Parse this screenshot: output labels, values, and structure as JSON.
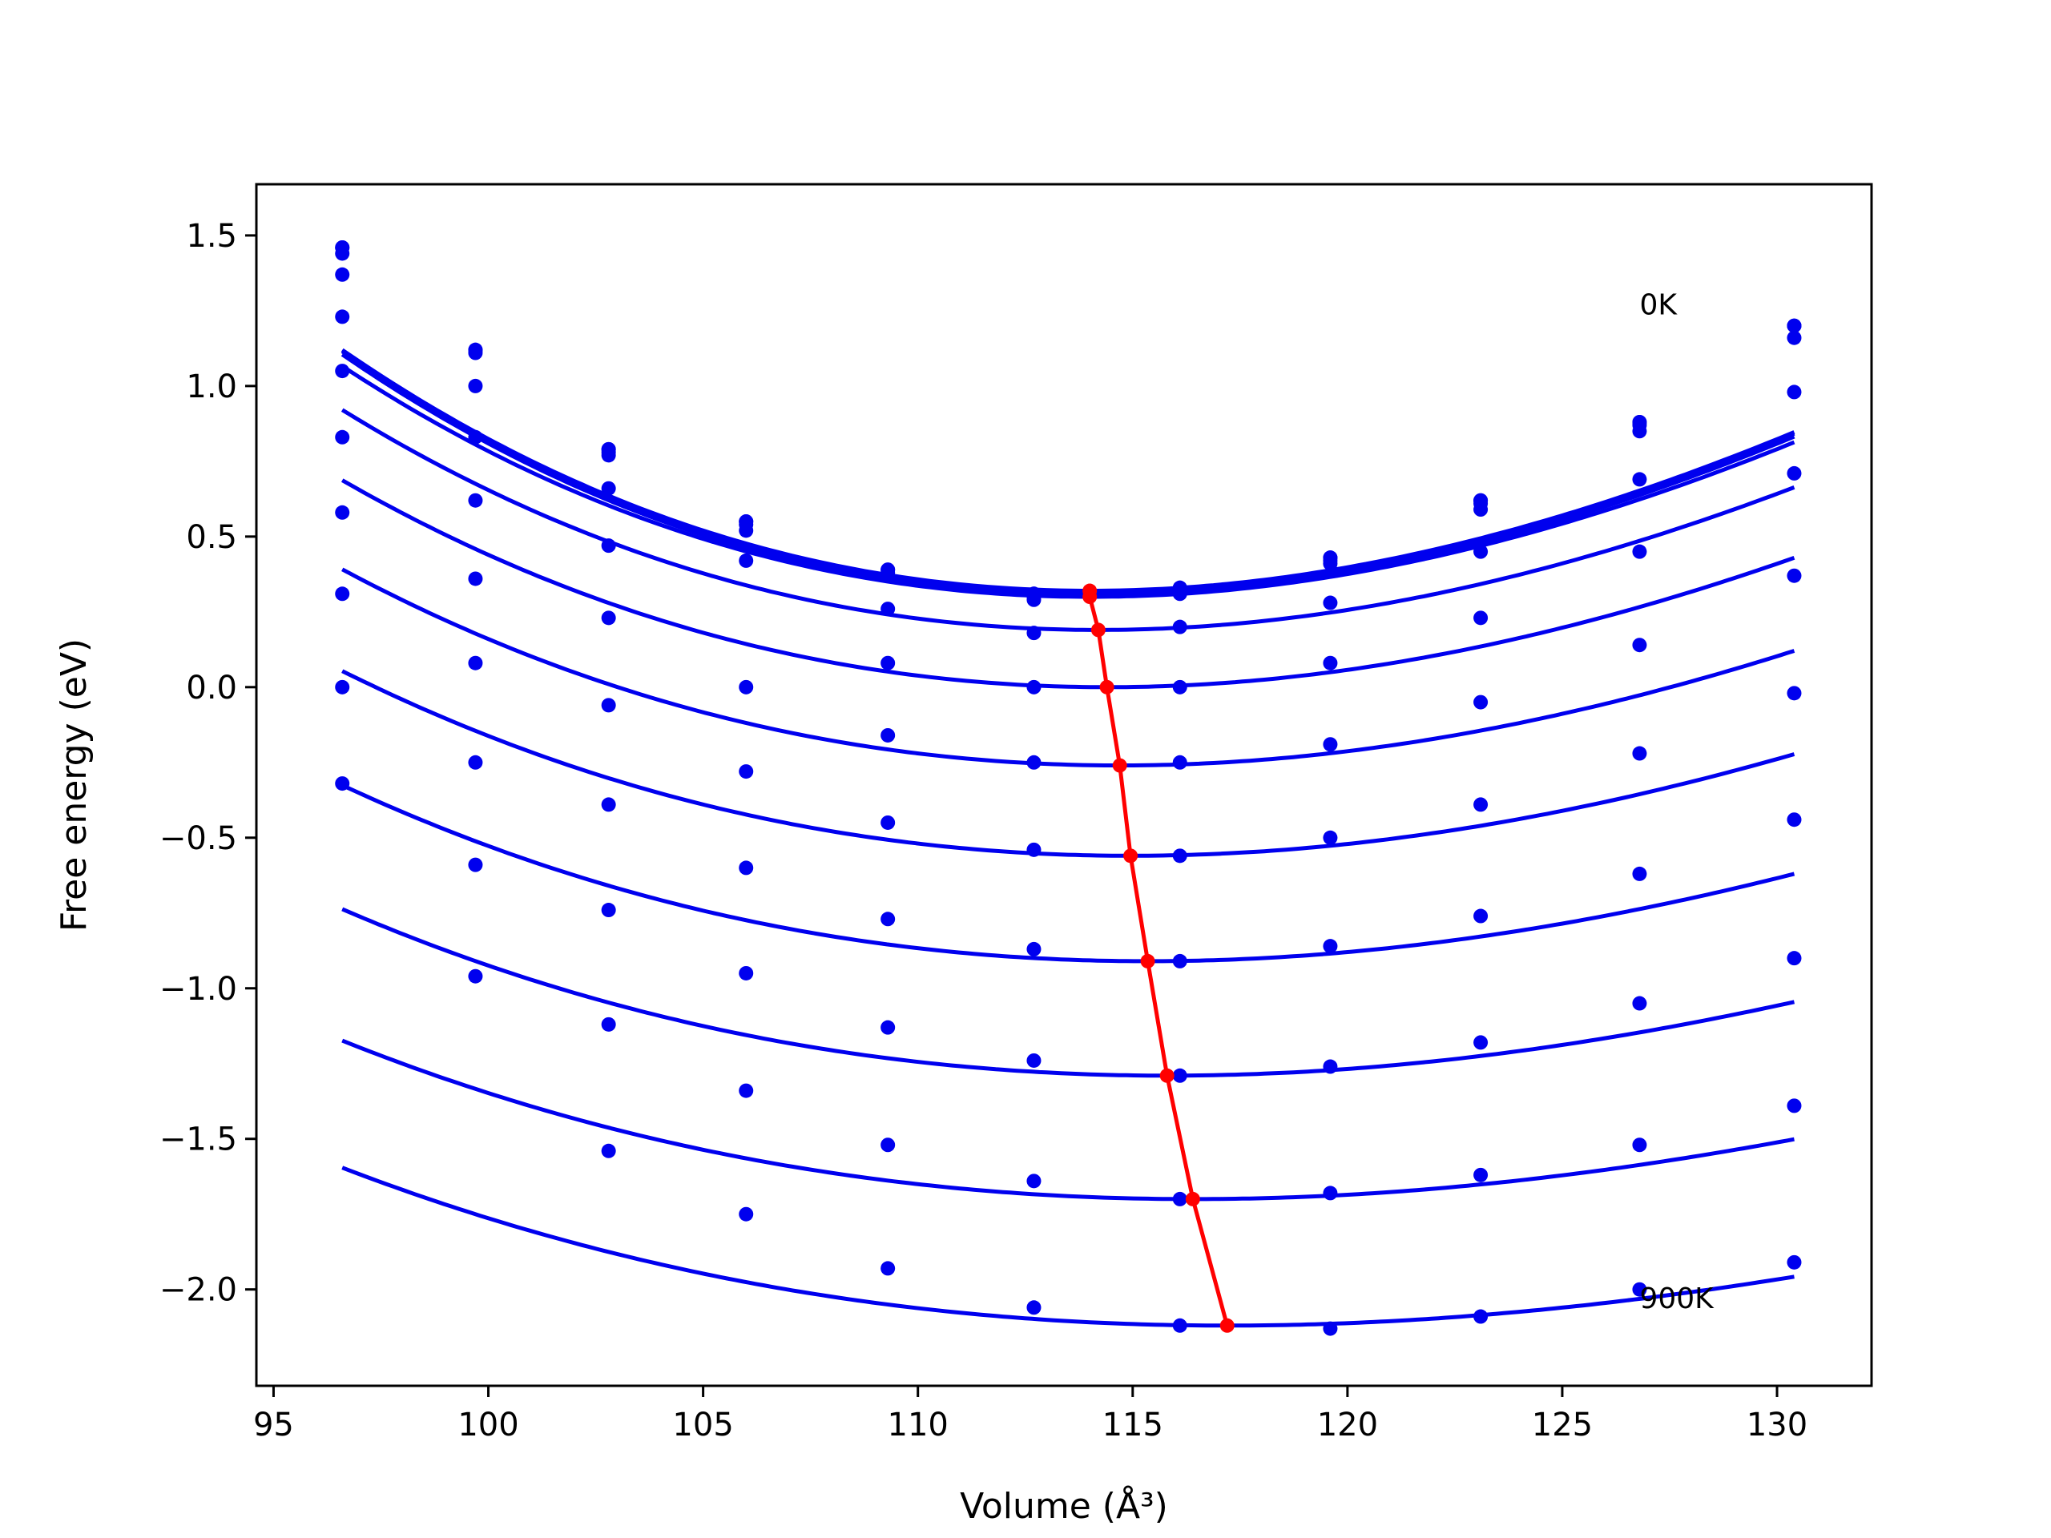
{
  "chart_data": {
    "type": "line",
    "xlabel": "Volume (Å³)",
    "ylabel": "Free energy (eV)",
    "xlim": [
      94.6,
      132.2
    ],
    "ylim": [
      -2.32,
      1.67
    ],
    "x_ticks": [
      95,
      100,
      105,
      110,
      115,
      120,
      125,
      130
    ],
    "y_ticks": [
      -2.0,
      -1.5,
      -1.0,
      -0.5,
      0.0,
      0.5,
      1.0,
      1.5
    ],
    "x_tick_labels": [
      "95",
      "100",
      "105",
      "110",
      "115",
      "120",
      "125",
      "130"
    ],
    "y_tick_labels": [
      "−2.0",
      "−1.5",
      "−1.0",
      "−0.5",
      "0.0",
      "0.5",
      "1.0",
      "1.5"
    ],
    "grid": false,
    "colors": {
      "curves": "#0000ee",
      "minimum_line": "#ff0000"
    },
    "annotations": [
      {
        "text": "0K",
        "x": 126.8,
        "y": 1.27
      },
      {
        "text": "900K",
        "x": 126.8,
        "y": -2.03
      }
    ],
    "volumes": [
      96.6,
      99.7,
      102.8,
      106.0,
      109.3,
      112.7,
      116.1,
      119.6,
      123.1,
      126.8,
      130.4
    ],
    "series": [
      {
        "points": [
          1.46,
          1.12,
          0.79,
          0.55,
          0.39,
          0.31,
          0.33,
          0.43,
          0.62,
          0.88,
          1.2
        ],
        "fit": {
          "v0": 114.0,
          "e0": 0.32,
          "c2": 0.00229,
          "c3": -2.02e-05
        }
      },
      {
        "points": [
          1.46,
          1.12,
          0.79,
          0.55,
          0.39,
          0.31,
          0.33,
          0.43,
          0.62,
          0.88,
          1.2
        ],
        "fit": {
          "v0": 114.0,
          "e0": 0.315,
          "c2": 0.00229,
          "c3": -2.02e-05
        }
      },
      {
        "points": [
          1.44,
          1.11,
          0.78,
          0.54,
          0.38,
          0.3,
          0.32,
          0.42,
          0.61,
          0.87,
          1.2
        ],
        "fit": {
          "v0": 114.0,
          "e0": 0.305,
          "c2": 0.00229,
          "c3": -2.02e-05
        }
      },
      {
        "points": [
          1.37,
          1.0,
          0.77,
          0.52,
          0.37,
          0.29,
          0.31,
          0.41,
          0.59,
          0.85,
          1.16
        ],
        "fit": {
          "v0": 114.0,
          "e0": 0.3,
          "c2": 0.00221,
          "c3": -1.84e-05
        }
      },
      {
        "points": [
          1.23,
          0.83,
          0.66,
          0.42,
          0.26,
          0.18,
          0.2,
          0.28,
          0.45,
          0.69,
          0.98
        ],
        "fit": {
          "v0": 114.2,
          "e0": 0.19,
          "c2": 0.00207,
          "c3": -1.64e-05
        }
      },
      {
        "points": [
          1.05,
          0.62,
          0.47,
          0.0,
          0.08,
          0.0,
          0.0,
          0.08,
          0.23,
          0.45,
          0.71
        ],
        "fit": {
          "v0": 114.4,
          "e0": 0.0,
          "c2": 0.00191,
          "c3": -1.45e-05
        }
      },
      {
        "points": [
          0.83,
          0.36,
          0.23,
          -0.28,
          -0.16,
          -0.25,
          -0.25,
          -0.19,
          -0.05,
          0.14,
          0.37
        ],
        "fit": {
          "v0": 114.7,
          "e0": -0.26,
          "c2": 0.00175,
          "c3": -1.31e-05
        }
      },
      {
        "points": [
          0.58,
          0.08,
          -0.06,
          -0.6,
          -0.45,
          -0.54,
          -0.56,
          -0.5,
          -0.39,
          -0.22,
          -0.02
        ],
        "fit": {
          "v0": 114.95,
          "e0": -0.56,
          "c2": 0.0016,
          "c3": -1.21e-05
        }
      },
      {
        "points": [
          0.31,
          -0.25,
          -0.39,
          -0.95,
          -0.77,
          -0.87,
          -0.91,
          -0.86,
          -0.76,
          -0.62,
          -0.44
        ],
        "fit": {
          "v0": 115.35,
          "e0": -0.91,
          "c2": 0.00145,
          "c3": -1.13e-05
        }
      },
      {
        "points": [
          0.0,
          -0.59,
          -0.74,
          -1.34,
          -1.13,
          -1.24,
          -1.29,
          -1.26,
          -1.18,
          -1.05,
          -0.9
        ],
        "fit": {
          "v0": 115.8,
          "e0": -1.29,
          "c2": 0.0013,
          "c3": -1.04e-05
        }
      },
      {
        "points": [
          -0.32,
          -0.96,
          -1.12,
          -1.75,
          -1.52,
          -1.64,
          -1.7,
          -1.68,
          -1.62,
          -1.52,
          -1.39
        ],
        "fit": {
          "v0": 116.4,
          "e0": -1.7,
          "c2": 0.00115,
          "c3": -9.7e-06
        }
      },
      {
        "points": [
          null,
          null,
          -1.54,
          null,
          -1.93,
          -2.06,
          -2.12,
          -2.13,
          -2.09,
          -2.0,
          -1.91
        ],
        "fit": {
          "v0": 117.2,
          "e0": -2.12,
          "c2": 0.00105,
          "c3": -9e-06
        }
      }
    ],
    "minimum_line": {
      "x": [
        114.0,
        114.0,
        114.2,
        114.4,
        114.7,
        114.95,
        115.35,
        115.8,
        116.4,
        117.2
      ],
      "y": [
        0.32,
        0.3,
        0.19,
        0.0,
        -0.26,
        -0.56,
        -0.91,
        -1.29,
        -1.7,
        -2.12
      ]
    }
  }
}
